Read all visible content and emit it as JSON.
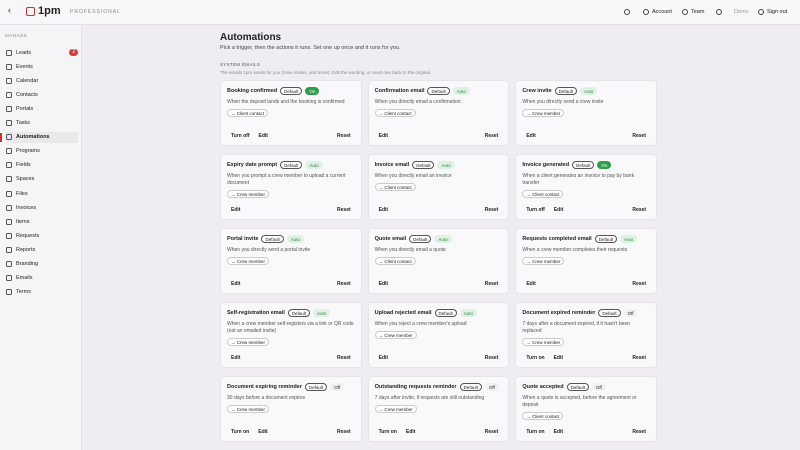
{
  "topbar": {
    "brand": "1pm",
    "edition": "PROFESSIONAL",
    "links": [
      "Account",
      "Team",
      "Demo",
      "Sign out"
    ]
  },
  "sidebar": {
    "heading": "MANAGE",
    "items": [
      "Leads",
      "Events",
      "Calendar",
      "Contacts",
      "Portals",
      "Tasks",
      "Automations",
      "Programs",
      "Fields",
      "Spaces",
      "Files",
      "Invoices",
      "Items",
      "Requests",
      "Reports",
      "Branding",
      "Emails",
      "Terms"
    ],
    "badge": {
      "item": 0,
      "count": 2
    },
    "active": 6
  },
  "page": {
    "title": "Automations",
    "subtitle": "Pick a trigger, then the actions it runs. Set one up once and it runs for you.",
    "section": {
      "title": "SYSTEM EMAILS",
      "description": "The emails 1pm sends for you (crew invites, and more). Edit the wording, or reset one back to the original."
    },
    "cards": [
      {
        "name": "Booking confirmed",
        "default": "Default",
        "status": "On",
        "status_style": "solid",
        "description": "When the deposit lands and the booking is confirmed",
        "recipient": "Client contact",
        "actions": [
          "Turn off",
          "Edit"
        ],
        "reset": "Reset"
      },
      {
        "name": "Confirmation email",
        "default": "Default",
        "status": "Auto",
        "status_style": "soft",
        "description": "When you directly email a confirmation",
        "recipient": "Client contact",
        "actions": [
          "Edit"
        ],
        "reset": "Reset"
      },
      {
        "name": "Crew invite",
        "default": "Default",
        "status": "Auto",
        "status_style": "soft",
        "description": "When you directly send a crew invite",
        "recipient": "Crew member",
        "actions": [
          "Edit"
        ],
        "reset": "Reset"
      },
      {
        "name": "Expiry date prompt",
        "default": "Default",
        "status": "Auto",
        "status_style": "soft",
        "description": "When you prompt a crew member to upload a current document",
        "recipient": "Crew member",
        "actions": [
          "Edit"
        ],
        "reset": "Reset"
      },
      {
        "name": "Invoice email",
        "default": "Default",
        "status": "Auto",
        "status_style": "soft",
        "description": "When you directly email an invoice",
        "recipient": "Client contact",
        "actions": [
          "Edit"
        ],
        "reset": "Reset"
      },
      {
        "name": "Invoice generated",
        "default": "Default",
        "status": "On",
        "status_style": "solid",
        "description": "When a client generates an invoice to pay by bank transfer",
        "recipient": "Client contact",
        "actions": [
          "Turn off",
          "Edit"
        ],
        "reset": "Reset"
      },
      {
        "name": "Portal invite",
        "default": "Default",
        "status": "Auto",
        "status_style": "soft",
        "description": "When you directly send a portal invite",
        "recipient": "Crew member",
        "actions": [
          "Edit"
        ],
        "reset": "Reset"
      },
      {
        "name": "Quote email",
        "default": "Default",
        "status": "Auto",
        "status_style": "soft",
        "description": "When you directly email a quote",
        "recipient": "Client contact",
        "actions": [
          "Edit"
        ],
        "reset": "Reset"
      },
      {
        "name": "Requests completed email",
        "default": "Default",
        "status": "Auto",
        "status_style": "soft",
        "description": "When a crew member completes their requests",
        "recipient": "Crew member",
        "actions": [
          "Edit"
        ],
        "reset": "Reset"
      },
      {
        "name": "Self-registration email",
        "default": "Default",
        "status": "Auto",
        "status_style": "soft",
        "description": "When a crew member self-registers via a link or QR code (not an emailed invite)",
        "recipient": "Crew member",
        "actions": [
          "Edit"
        ],
        "reset": "Reset"
      },
      {
        "name": "Upload rejected email",
        "default": "Default",
        "status": "Auto",
        "status_style": "soft",
        "description": "When you reject a crew member's upload",
        "recipient": "Crew member",
        "actions": [
          "Edit"
        ],
        "reset": "Reset"
      },
      {
        "name": "Document expired reminder",
        "default": "Default",
        "status": "Off",
        "status_style": "plain",
        "description": "7 days after a document expired, if it hasn't been replaced",
        "recipient": "Crew member",
        "actions": [
          "Turn on",
          "Edit"
        ],
        "reset": "Reset"
      },
      {
        "name": "Document expiring reminder",
        "default": "Default",
        "status": "Off",
        "status_style": "plain",
        "description": "30 days before a document expires",
        "recipient": "Crew member",
        "actions": [
          "Turn on",
          "Edit"
        ],
        "reset": "Reset"
      },
      {
        "name": "Outstanding requests reminder",
        "default": "Default",
        "status": "Off",
        "status_style": "plain",
        "description": "7 days after invite, if requests are still outstanding",
        "recipient": "Crew member",
        "actions": [
          "Turn on",
          "Edit"
        ],
        "reset": "Reset"
      },
      {
        "name": "Quote accepted",
        "default": "Default",
        "status": "Off",
        "status_style": "plain",
        "description": "When a quote is accepted, before the agreement or deposit",
        "recipient": "Client contact",
        "actions": [
          "Turn on",
          "Edit"
        ],
        "reset": "Reset"
      }
    ]
  }
}
